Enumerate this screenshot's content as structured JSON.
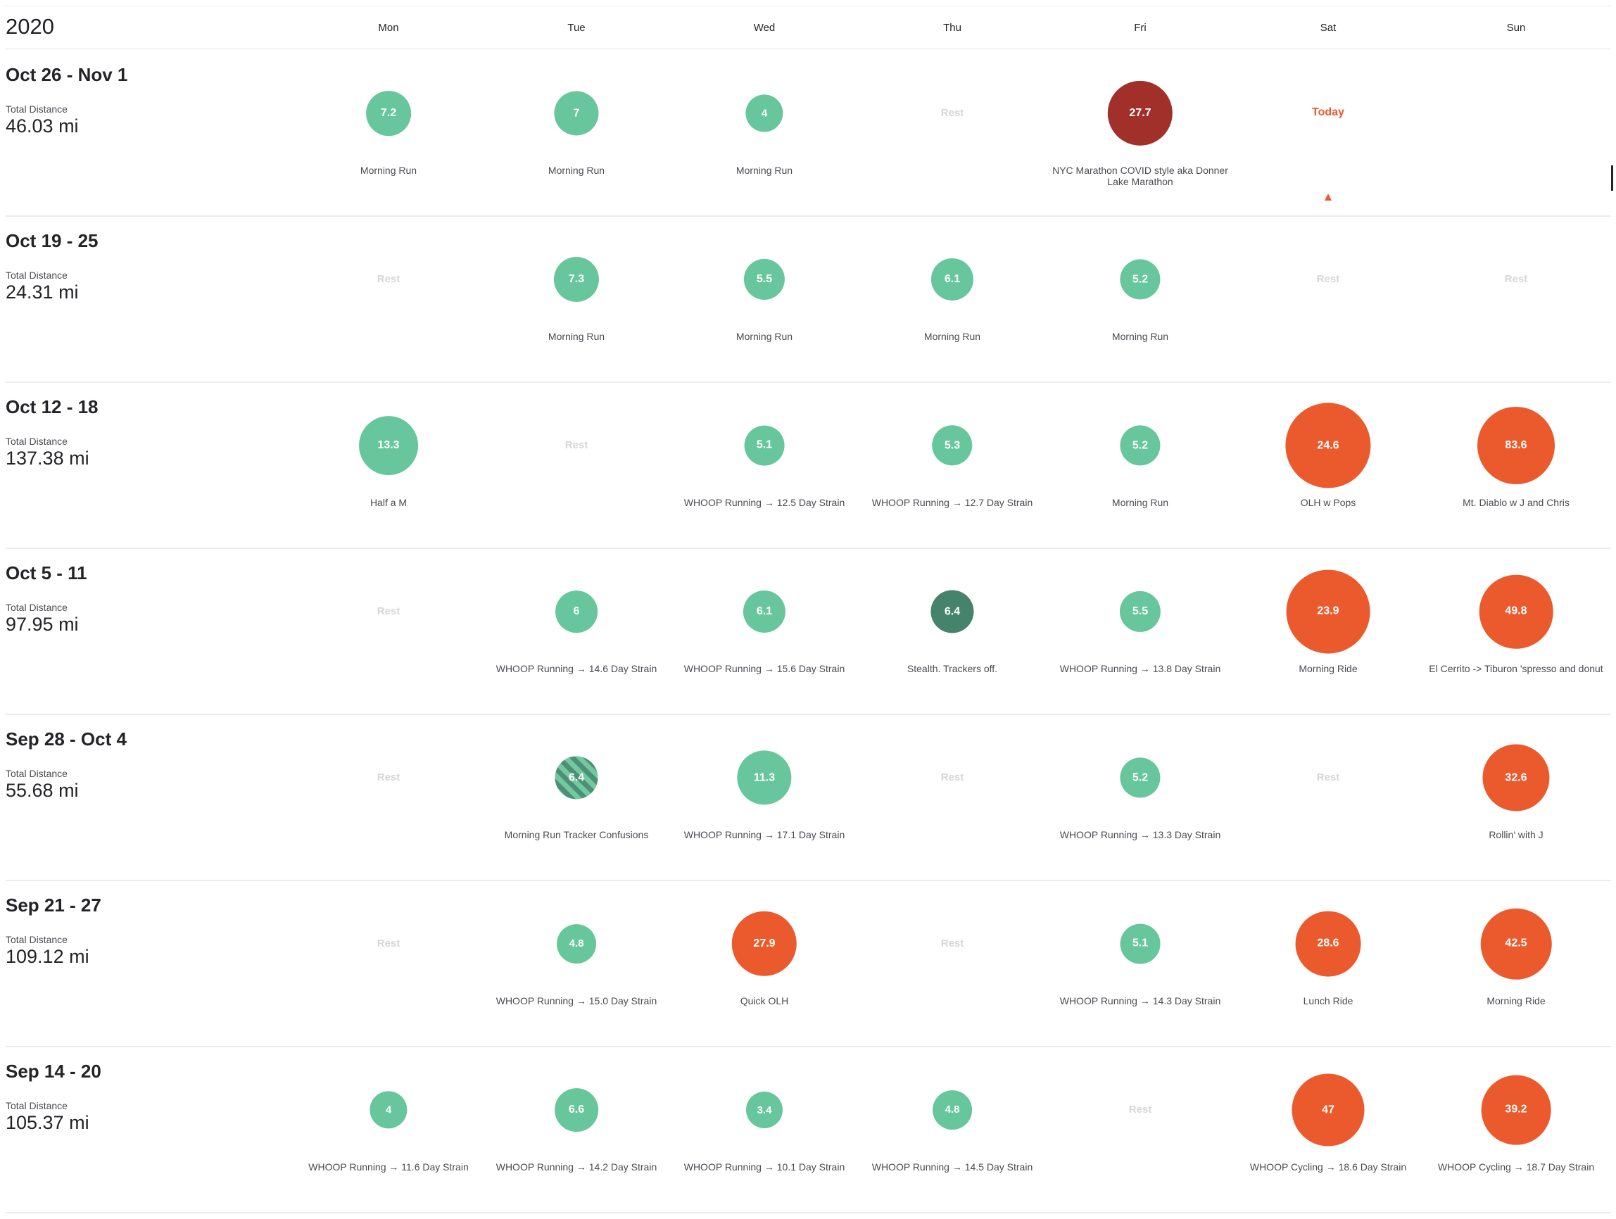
{
  "calendar": {
    "year": "2020",
    "days": [
      "Mon",
      "Tue",
      "Wed",
      "Thu",
      "Fri",
      "Sat",
      "Sun"
    ],
    "total_label": "Total Distance",
    "rest_label": "Rest",
    "today_label": "Today",
    "colors": {
      "run": "#67c69c",
      "run_dark": "#46836c",
      "ride": "#ea5a2d",
      "race": "#a1302b",
      "rest_text": "#d6d6da",
      "today": "#ea5a2d"
    },
    "weeks": [
      {
        "range": "Oct 26 - Nov 1",
        "total": "46.03 mi",
        "days": [
          {
            "kind": "activity",
            "type": "run",
            "value": "7.2",
            "name": "Morning Run"
          },
          {
            "kind": "activity",
            "type": "run",
            "value": "7",
            "name": "Morning Run"
          },
          {
            "kind": "activity",
            "type": "run",
            "value": "4",
            "name": "Morning Run"
          },
          {
            "kind": "rest"
          },
          {
            "kind": "activity",
            "type": "race",
            "value": "27.7",
            "name": "NYC Marathon COVID style aka Donner Lake Marathon"
          },
          {
            "kind": "today"
          },
          {
            "kind": "empty"
          }
        ]
      },
      {
        "range": "Oct 19 - 25",
        "total": "24.31 mi",
        "days": [
          {
            "kind": "rest"
          },
          {
            "kind": "activity",
            "type": "run",
            "value": "7.3",
            "name": "Morning Run"
          },
          {
            "kind": "activity",
            "type": "run",
            "value": "5.5",
            "name": "Morning Run"
          },
          {
            "kind": "activity",
            "type": "run",
            "value": "6.1",
            "name": "Morning Run"
          },
          {
            "kind": "activity",
            "type": "run",
            "value": "5.2",
            "name": "Morning Run"
          },
          {
            "kind": "rest"
          },
          {
            "kind": "rest"
          }
        ]
      },
      {
        "range": "Oct 12 - 18",
        "total": "137.38 mi",
        "days": [
          {
            "kind": "activity",
            "type": "run",
            "value": "13.3",
            "name": "Half a M"
          },
          {
            "kind": "rest"
          },
          {
            "kind": "activity",
            "type": "run",
            "value": "5.1",
            "name": "WHOOP Running → 12.5 Day Strain"
          },
          {
            "kind": "activity",
            "type": "run",
            "value": "5.3",
            "name": "WHOOP Running → 12.7 Day Strain"
          },
          {
            "kind": "activity",
            "type": "run",
            "value": "5.2",
            "name": "Morning Run"
          },
          {
            "kind": "activity",
            "type": "ride",
            "value": "24.6",
            "name": "OLH w Pops"
          },
          {
            "kind": "activity",
            "type": "ride",
            "value": "83.6",
            "name": "Mt. Diablo w J and Chris"
          }
        ]
      },
      {
        "range": "Oct 5 - 11",
        "total": "97.95 mi",
        "days": [
          {
            "kind": "rest"
          },
          {
            "kind": "activity",
            "type": "run",
            "value": "6",
            "name": "WHOOP Running → 14.6 Day Strain"
          },
          {
            "kind": "activity",
            "type": "run",
            "value": "6.1",
            "name": "WHOOP Running → 15.6 Day Strain"
          },
          {
            "kind": "activity",
            "type": "run-dark",
            "value": "6.4",
            "name": "Stealth. Trackers off."
          },
          {
            "kind": "activity",
            "type": "run",
            "value": "5.5",
            "name": "WHOOP Running → 13.8 Day Strain"
          },
          {
            "kind": "activity",
            "type": "ride",
            "value": "23.9",
            "name": "Morning Ride"
          },
          {
            "kind": "activity",
            "type": "ride",
            "value": "49.8",
            "name": "El Cerrito -> Tiburon 'spresso and donut"
          }
        ]
      },
      {
        "range": "Sep 28 - Oct 4",
        "total": "55.68 mi",
        "days": [
          {
            "kind": "rest"
          },
          {
            "kind": "activity",
            "type": "striped",
            "value": "6.4",
            "name": "Morning Run Tracker Confusions"
          },
          {
            "kind": "activity",
            "type": "run",
            "value": "11.3",
            "name": "WHOOP Running → 17.1 Day Strain"
          },
          {
            "kind": "rest"
          },
          {
            "kind": "activity",
            "type": "run",
            "value": "5.2",
            "name": "WHOOP Running → 13.3 Day Strain"
          },
          {
            "kind": "rest"
          },
          {
            "kind": "activity",
            "type": "ride",
            "value": "32.6",
            "name": "Rollin' with J"
          }
        ]
      },
      {
        "range": "Sep 21 - 27",
        "total": "109.12 mi",
        "days": [
          {
            "kind": "rest"
          },
          {
            "kind": "activity",
            "type": "run",
            "value": "4.8",
            "name": "WHOOP Running → 15.0 Day Strain"
          },
          {
            "kind": "activity",
            "type": "ride",
            "value": "27.9",
            "name": "Quick OLH"
          },
          {
            "kind": "rest"
          },
          {
            "kind": "activity",
            "type": "run",
            "value": "5.1",
            "name": "WHOOP Running → 14.3 Day Strain"
          },
          {
            "kind": "activity",
            "type": "ride",
            "value": "28.6",
            "name": "Lunch Ride"
          },
          {
            "kind": "activity",
            "type": "ride",
            "value": "42.5",
            "name": "Morning Ride"
          }
        ]
      },
      {
        "range": "Sep 14 - 20",
        "total": "105.37 mi",
        "days": [
          {
            "kind": "activity",
            "type": "run",
            "value": "4",
            "name": "WHOOP Running → 11.6 Day Strain"
          },
          {
            "kind": "activity",
            "type": "run",
            "value": "6.6",
            "name": "WHOOP Running → 14.2 Day Strain"
          },
          {
            "kind": "activity",
            "type": "run",
            "value": "3.4",
            "name": "WHOOP Running → 10.1 Day Strain"
          },
          {
            "kind": "activity",
            "type": "run",
            "value": "4.8",
            "name": "WHOOP Running → 14.5 Day Strain"
          },
          {
            "kind": "rest"
          },
          {
            "kind": "activity",
            "type": "ride",
            "value": "47",
            "name": "WHOOP Cycling → 18.6 Day Strain"
          },
          {
            "kind": "activity",
            "type": "ride",
            "value": "39.2",
            "name": "WHOOP Cycling → 18.7 Day Strain"
          }
        ]
      }
    ]
  }
}
